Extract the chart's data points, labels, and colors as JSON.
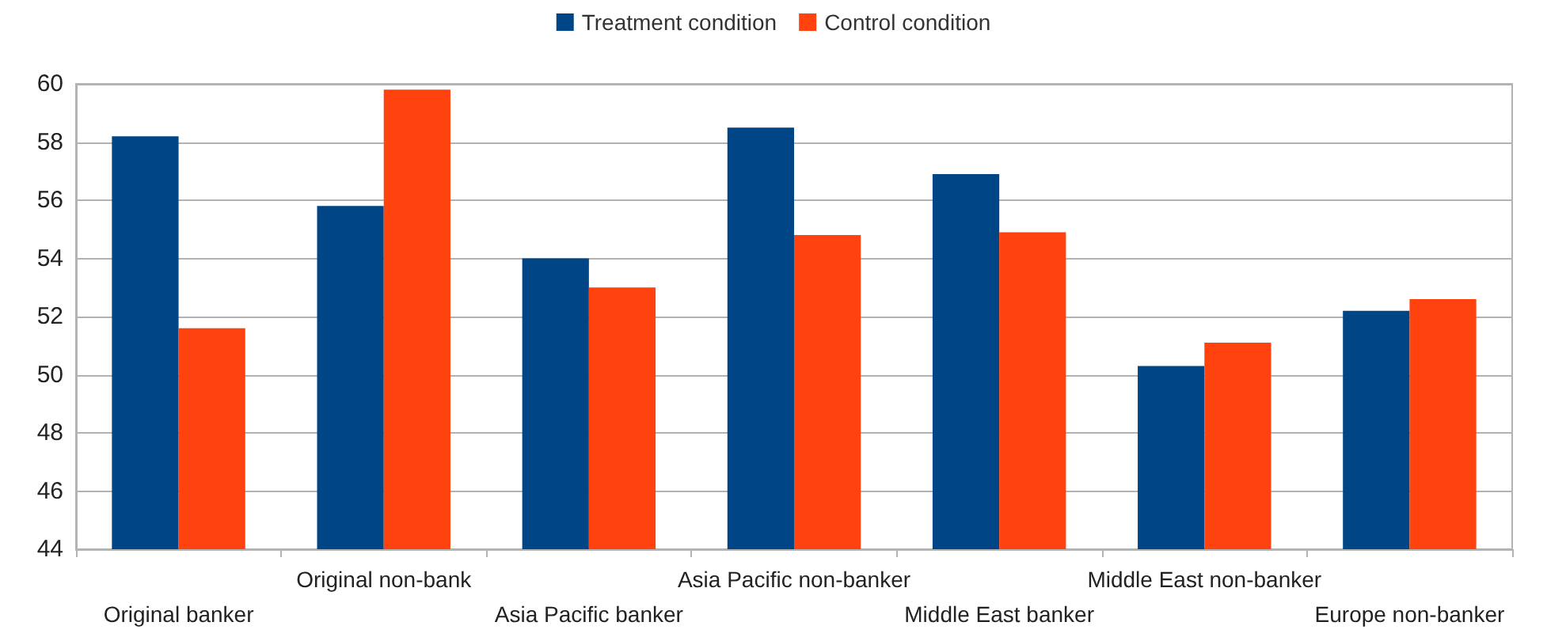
{
  "chart_data": {
    "type": "bar",
    "categories": [
      "Original banker",
      "Original non-bank",
      "Asia Pacific banker",
      "Asia Pacific non-banker",
      "Middle East banker",
      "Middle East non-banker",
      "Europe non-banker"
    ],
    "series": [
      {
        "name": "Treatment condition",
        "color": "#004586",
        "values": [
          58.2,
          55.8,
          54.0,
          58.5,
          56.9,
          50.3,
          52.2
        ]
      },
      {
        "name": "Control condition",
        "color": "#ff420e",
        "values": [
          51.6,
          59.8,
          53.0,
          54.8,
          54.9,
          51.1,
          52.6
        ]
      }
    ],
    "ylim": [
      44,
      60
    ],
    "yticks": [
      44,
      46,
      48,
      50,
      52,
      54,
      56,
      58,
      60
    ],
    "grid": "y",
    "legend": "top"
  }
}
